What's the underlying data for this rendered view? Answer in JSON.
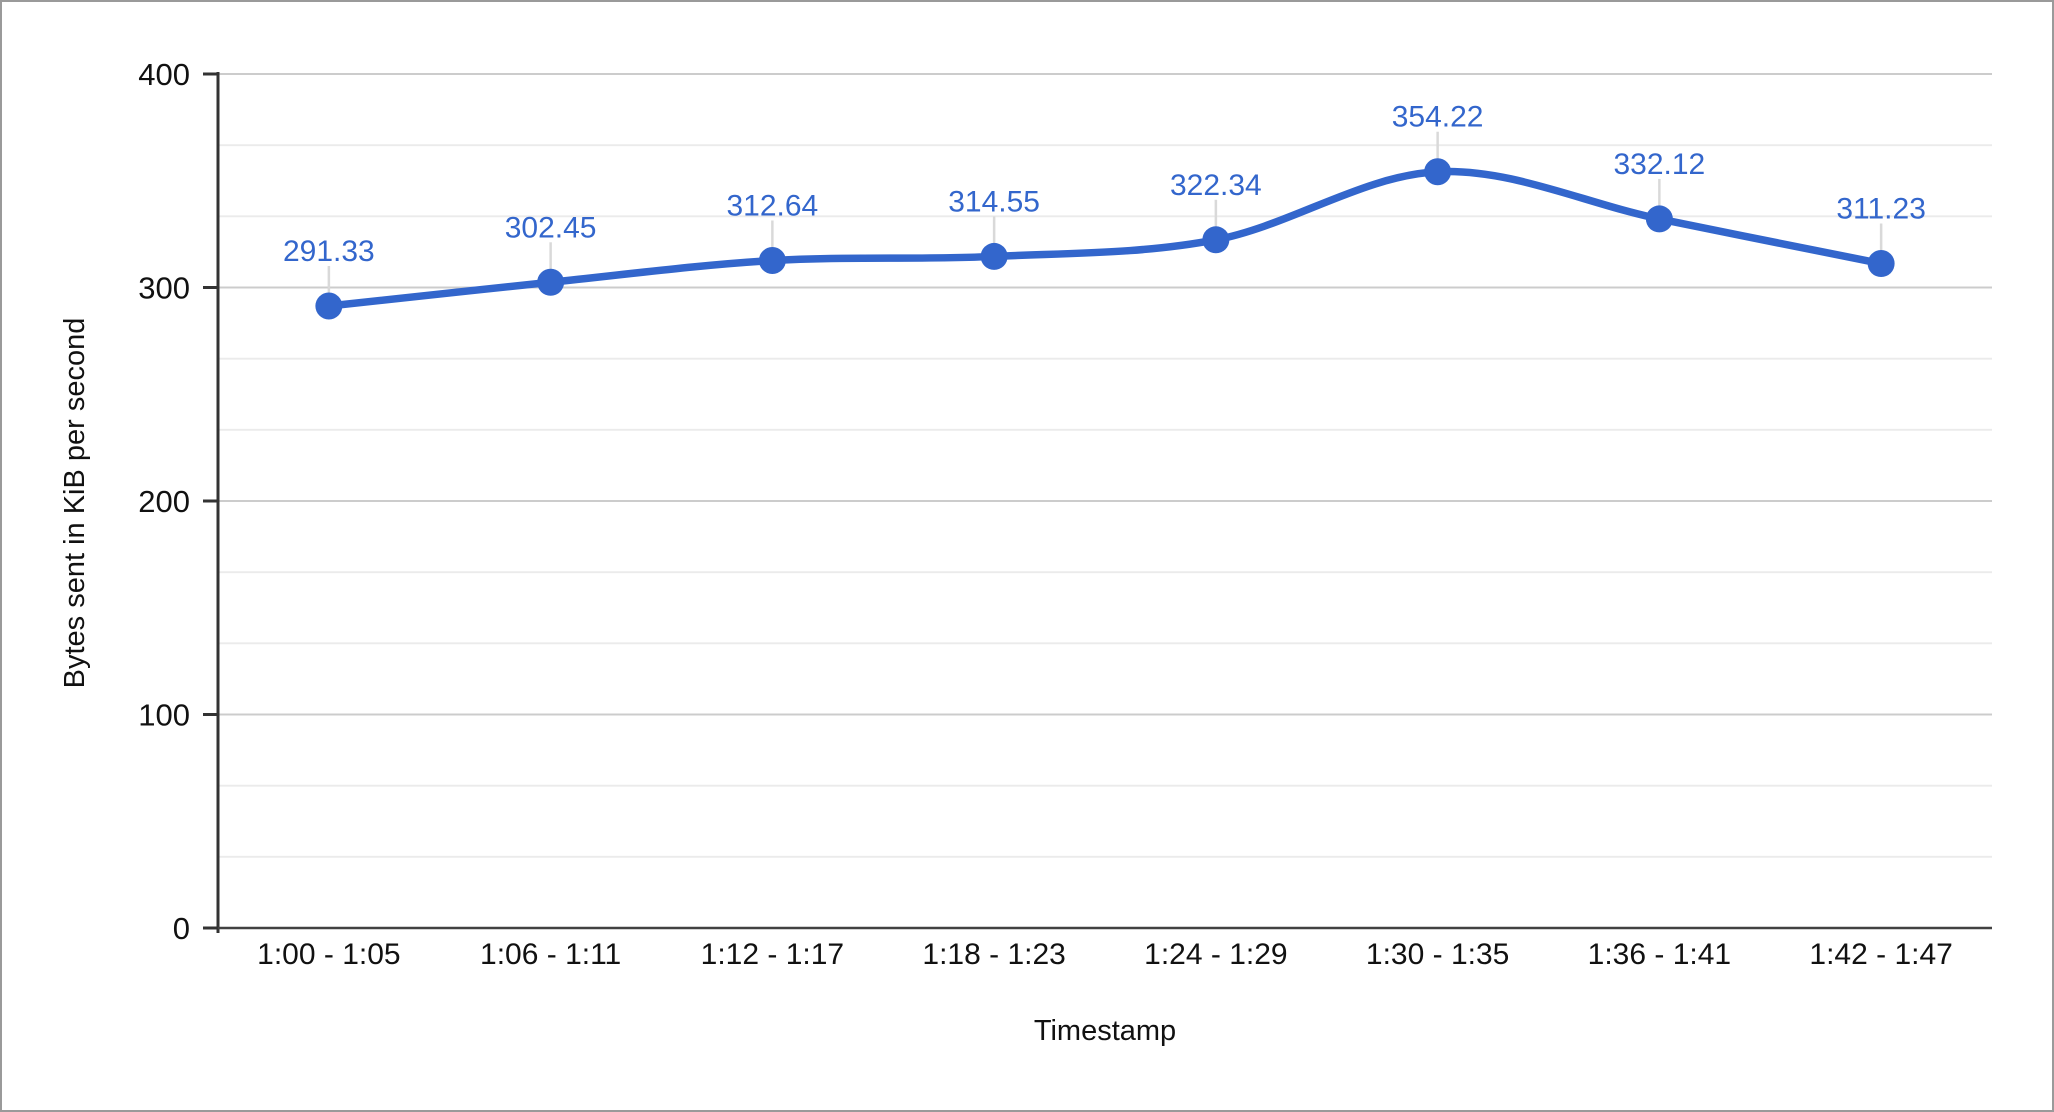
{
  "chart_data": {
    "type": "line",
    "curve": "smooth",
    "categories": [
      "1:00 - 1:05",
      "1:06 - 1:11",
      "1:12 - 1:17",
      "1:18 - 1:23",
      "1:24 - 1:29",
      "1:30 - 1:35",
      "1:36 - 1:41",
      "1:42 - 1:47"
    ],
    "values": [
      291.33,
      302.45,
      312.64,
      314.55,
      322.34,
      354.22,
      332.12,
      311.23
    ],
    "point_labels": [
      "291.33",
      "302.45",
      "312.64",
      "314.55",
      "322.34",
      "354.22",
      "332.12",
      "311.23"
    ],
    "title": "",
    "xlabel": "Timestamp",
    "ylabel": "Bytes sent in KiB per second",
    "ylim": [
      0,
      400
    ],
    "yticks": [
      0,
      100,
      200,
      300,
      400
    ],
    "ytick_labels": [
      "0",
      "100",
      "200",
      "300",
      "400"
    ],
    "minor_gridlines_per_major": 2,
    "grid": "on",
    "legend": "none",
    "colors": {
      "series": "#3366cc",
      "data_label": "#3366cc",
      "major_gridline": "#cccccc",
      "minor_gridline": "#ebebeb",
      "axis_line": "#333333",
      "baseline": "#424242",
      "annotation_stem": "#d9d9d9",
      "tick_text": "#111111",
      "page_border": "#9a9a9a"
    }
  }
}
